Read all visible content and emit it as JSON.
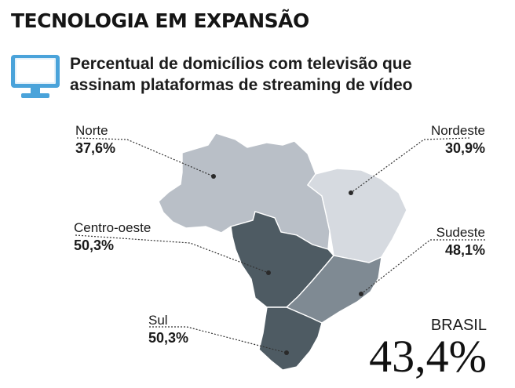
{
  "headline": "TECNOLOGIA EM EXPANSÃO",
  "subtitle_line1": "Percentual de domicílios com televisão que",
  "subtitle_line2": "assinam plataformas de streaming de vídeo",
  "icon": "tv-icon",
  "regions": {
    "norte": {
      "name": "Norte",
      "value": "37,6%",
      "color": "#b9bfc7"
    },
    "nordeste": {
      "name": "Nordeste",
      "value": "30,9%",
      "color": "#d6dae0"
    },
    "centro_oeste": {
      "name": "Centro-oeste",
      "value": "50,3%",
      "color": "#4e5b63"
    },
    "sudeste": {
      "name": "Sudeste",
      "value": "48,1%",
      "color": "#7f8a93"
    },
    "sul": {
      "name": "Sul",
      "value": "50,3%",
      "color": "#4e5b63"
    }
  },
  "brasil": {
    "label": "BRASIL",
    "value": "43,4%"
  },
  "colors": {
    "icon_blue": "#4aa3da",
    "icon_light": "#e4f1fa",
    "border": "#ffffff"
  }
}
